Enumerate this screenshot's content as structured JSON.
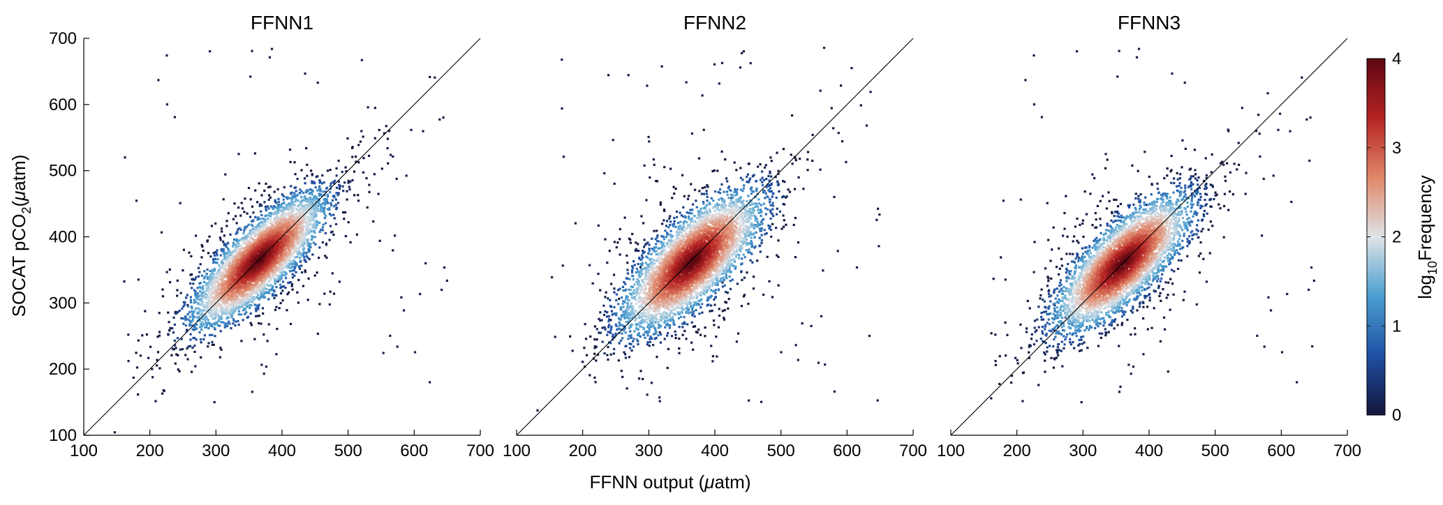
{
  "figure": {
    "xlabel_pre": "FFNN output (",
    "xlabel_mu": "μ",
    "xlabel_post": "atm)",
    "ylabel_pre": "SOCAT pCO",
    "ylabel_sub": "2",
    "ylabel_mid": "(",
    "ylabel_mu": "μ",
    "ylabel_post": "atm)",
    "colorbar_label_pre": "log",
    "colorbar_label_sub": "10",
    "colorbar_label_post": "Frequency"
  },
  "colorbar": {
    "ticks": [
      "0",
      "1",
      "2",
      "3",
      "4"
    ],
    "range": [
      0,
      4
    ],
    "colors": [
      "#14163a",
      "#1f4fa3",
      "#4a9fd0",
      "#dfe3e6",
      "#e0876a",
      "#b52323",
      "#5c0712"
    ]
  },
  "chart_data": [
    {
      "type": "heatmap",
      "title": "FFNN1",
      "xlim": [
        100,
        700
      ],
      "ylim": [
        100,
        700
      ],
      "x_ticks": [
        "100",
        "200",
        "300",
        "400",
        "500",
        "600",
        "700"
      ],
      "y_ticks": [
        "100",
        "200",
        "300",
        "400",
        "500",
        "600",
        "700"
      ],
      "one_to_one_line": true,
      "density_center": [
        365,
        365
      ],
      "density_sd_major": 60,
      "density_sd_minor": 20
    },
    {
      "type": "heatmap",
      "title": "FFNN2",
      "xlim": [
        100,
        700
      ],
      "ylim": [
        100,
        700
      ],
      "x_ticks": [
        "100",
        "200",
        "300",
        "400",
        "500",
        "600",
        "700"
      ],
      "y_ticks": [
        "100",
        "200",
        "300",
        "400",
        "500",
        "600",
        "700"
      ],
      "one_to_one_line": true,
      "density_center": [
        365,
        362
      ],
      "density_sd_major": 62,
      "density_sd_minor": 24
    },
    {
      "type": "heatmap",
      "title": "FFNN3",
      "xlim": [
        100,
        700
      ],
      "ylim": [
        100,
        700
      ],
      "x_ticks": [
        "100",
        "200",
        "300",
        "400",
        "500",
        "600",
        "700"
      ],
      "y_ticks": [
        "100",
        "200",
        "300",
        "400",
        "500",
        "600",
        "700"
      ],
      "one_to_one_line": true,
      "density_center": [
        360,
        360
      ],
      "density_sd_major": 60,
      "density_sd_minor": 22
    }
  ]
}
